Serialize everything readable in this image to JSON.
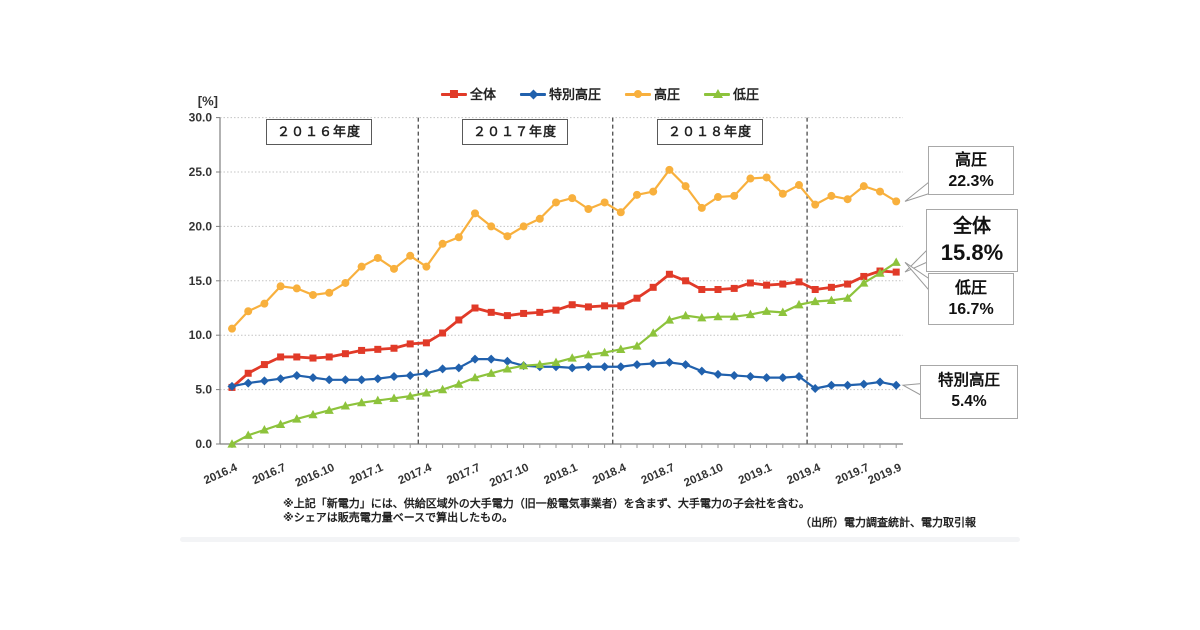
{
  "axis": {
    "unit_label": "[%]"
  },
  "year_bands": [
    {
      "label": "２０１６年度"
    },
    {
      "label": "２０１７年度"
    },
    {
      "label": "２０１８年度"
    }
  ],
  "callouts": [
    {
      "label": "高圧",
      "value": "22.3%"
    },
    {
      "label": "全体",
      "value": "15.8%"
    },
    {
      "label": "低圧",
      "value": "16.7%"
    },
    {
      "label": "特別高圧",
      "value": "5.4%"
    }
  ],
  "footnotes": {
    "line1": "※上記「新電力」には、供給区域外の大手電力（旧一般電気事業者）を含まず、大手電力の子会社を含む。",
    "line2": "※シェアは販売電力量ベースで算出したもの。"
  },
  "source": "（出所）電力調査統計、電力取引報",
  "chart_data": {
    "type": "line",
    "title": "",
    "ylabel": "[%]",
    "ylim": [
      0,
      30
    ],
    "ytick_step": 5,
    "y_ticks": [
      "30.0",
      "25.0",
      "20.0",
      "15.0",
      "10.0",
      "5.0",
      "0.0"
    ],
    "grid": true,
    "legend_position": "top",
    "x": [
      "2016.4",
      "2016.5",
      "2016.6",
      "2016.7",
      "2016.8",
      "2016.9",
      "2016.10",
      "2016.11",
      "2016.12",
      "2017.1",
      "2017.2",
      "2017.3",
      "2017.4",
      "2017.5",
      "2017.6",
      "2017.7",
      "2017.8",
      "2017.9",
      "2017.10",
      "2017.11",
      "2017.12",
      "2018.1",
      "2018.2",
      "2018.3",
      "2018.4",
      "2018.5",
      "2018.6",
      "2018.7",
      "2018.8",
      "2018.9",
      "2018.10",
      "2018.11",
      "2018.12",
      "2019.1",
      "2019.2",
      "2019.3",
      "2019.4",
      "2019.5",
      "2019.6",
      "2019.7",
      "2019.8",
      "2019.9"
    ],
    "x_tick_labels": [
      "2016.4",
      "2016.7",
      "2016.10",
      "2017.1",
      "2017.4",
      "2017.7",
      "2017.10",
      "2018.1",
      "2018.4",
      "2018.7",
      "2018.10",
      "2019.1",
      "2019.4",
      "2019.7",
      "2019.9"
    ],
    "fiscal_year_dividers_between": [
      [
        "2017.3",
        "2017.4"
      ],
      [
        "2018.3",
        "2018.4"
      ],
      [
        "2019.3",
        "2019.4"
      ]
    ],
    "series": [
      {
        "name": "全体",
        "color": "#e13a28",
        "marker": "square",
        "values": [
          5.2,
          6.5,
          7.3,
          8.0,
          8.0,
          7.9,
          8.0,
          8.3,
          8.6,
          8.7,
          8.8,
          9.2,
          9.3,
          10.2,
          11.4,
          12.5,
          12.1,
          11.8,
          12.0,
          12.1,
          12.3,
          12.8,
          12.6,
          12.7,
          12.7,
          13.4,
          14.4,
          15.6,
          15.0,
          14.2,
          14.2,
          14.3,
          14.8,
          14.6,
          14.7,
          14.9,
          14.2,
          14.4,
          14.7,
          15.4,
          15.9,
          15.8
        ]
      },
      {
        "name": "特別高圧",
        "color": "#2161ad",
        "marker": "diamond",
        "values": [
          5.3,
          5.6,
          5.8,
          6.0,
          6.3,
          6.1,
          5.9,
          5.9,
          5.9,
          6.0,
          6.2,
          6.3,
          6.5,
          6.9,
          7.0,
          7.8,
          7.8,
          7.6,
          7.2,
          7.1,
          7.1,
          7.0,
          7.1,
          7.1,
          7.1,
          7.3,
          7.4,
          7.5,
          7.3,
          6.7,
          6.4,
          6.3,
          6.2,
          6.1,
          6.1,
          6.2,
          5.1,
          5.4,
          5.4,
          5.5,
          5.7,
          5.4
        ]
      },
      {
        "name": "高圧",
        "color": "#f8b03d",
        "marker": "circle",
        "values": [
          10.6,
          12.2,
          12.9,
          14.5,
          14.3,
          13.7,
          13.9,
          14.8,
          16.3,
          17.1,
          16.1,
          17.3,
          16.3,
          18.4,
          19.0,
          21.2,
          20.0,
          19.1,
          20.0,
          20.7,
          22.2,
          22.6,
          21.6,
          22.2,
          21.3,
          22.9,
          23.2,
          25.2,
          23.7,
          21.7,
          22.7,
          22.8,
          24.4,
          24.5,
          23.0,
          23.8,
          22.0,
          22.8,
          22.5,
          23.7,
          23.2,
          22.3
        ]
      },
      {
        "name": "低圧",
        "color": "#8dc33c",
        "marker": "triangle",
        "values": [
          0.0,
          0.8,
          1.3,
          1.8,
          2.3,
          2.7,
          3.1,
          3.5,
          3.8,
          4.0,
          4.2,
          4.4,
          4.7,
          5.0,
          5.5,
          6.1,
          6.5,
          6.9,
          7.2,
          7.3,
          7.5,
          7.9,
          8.2,
          8.4,
          8.7,
          9.0,
          10.2,
          11.4,
          11.8,
          11.6,
          11.7,
          11.7,
          11.9,
          12.2,
          12.1,
          12.8,
          13.1,
          13.2,
          13.4,
          14.8,
          15.7,
          16.7
        ]
      }
    ]
  }
}
